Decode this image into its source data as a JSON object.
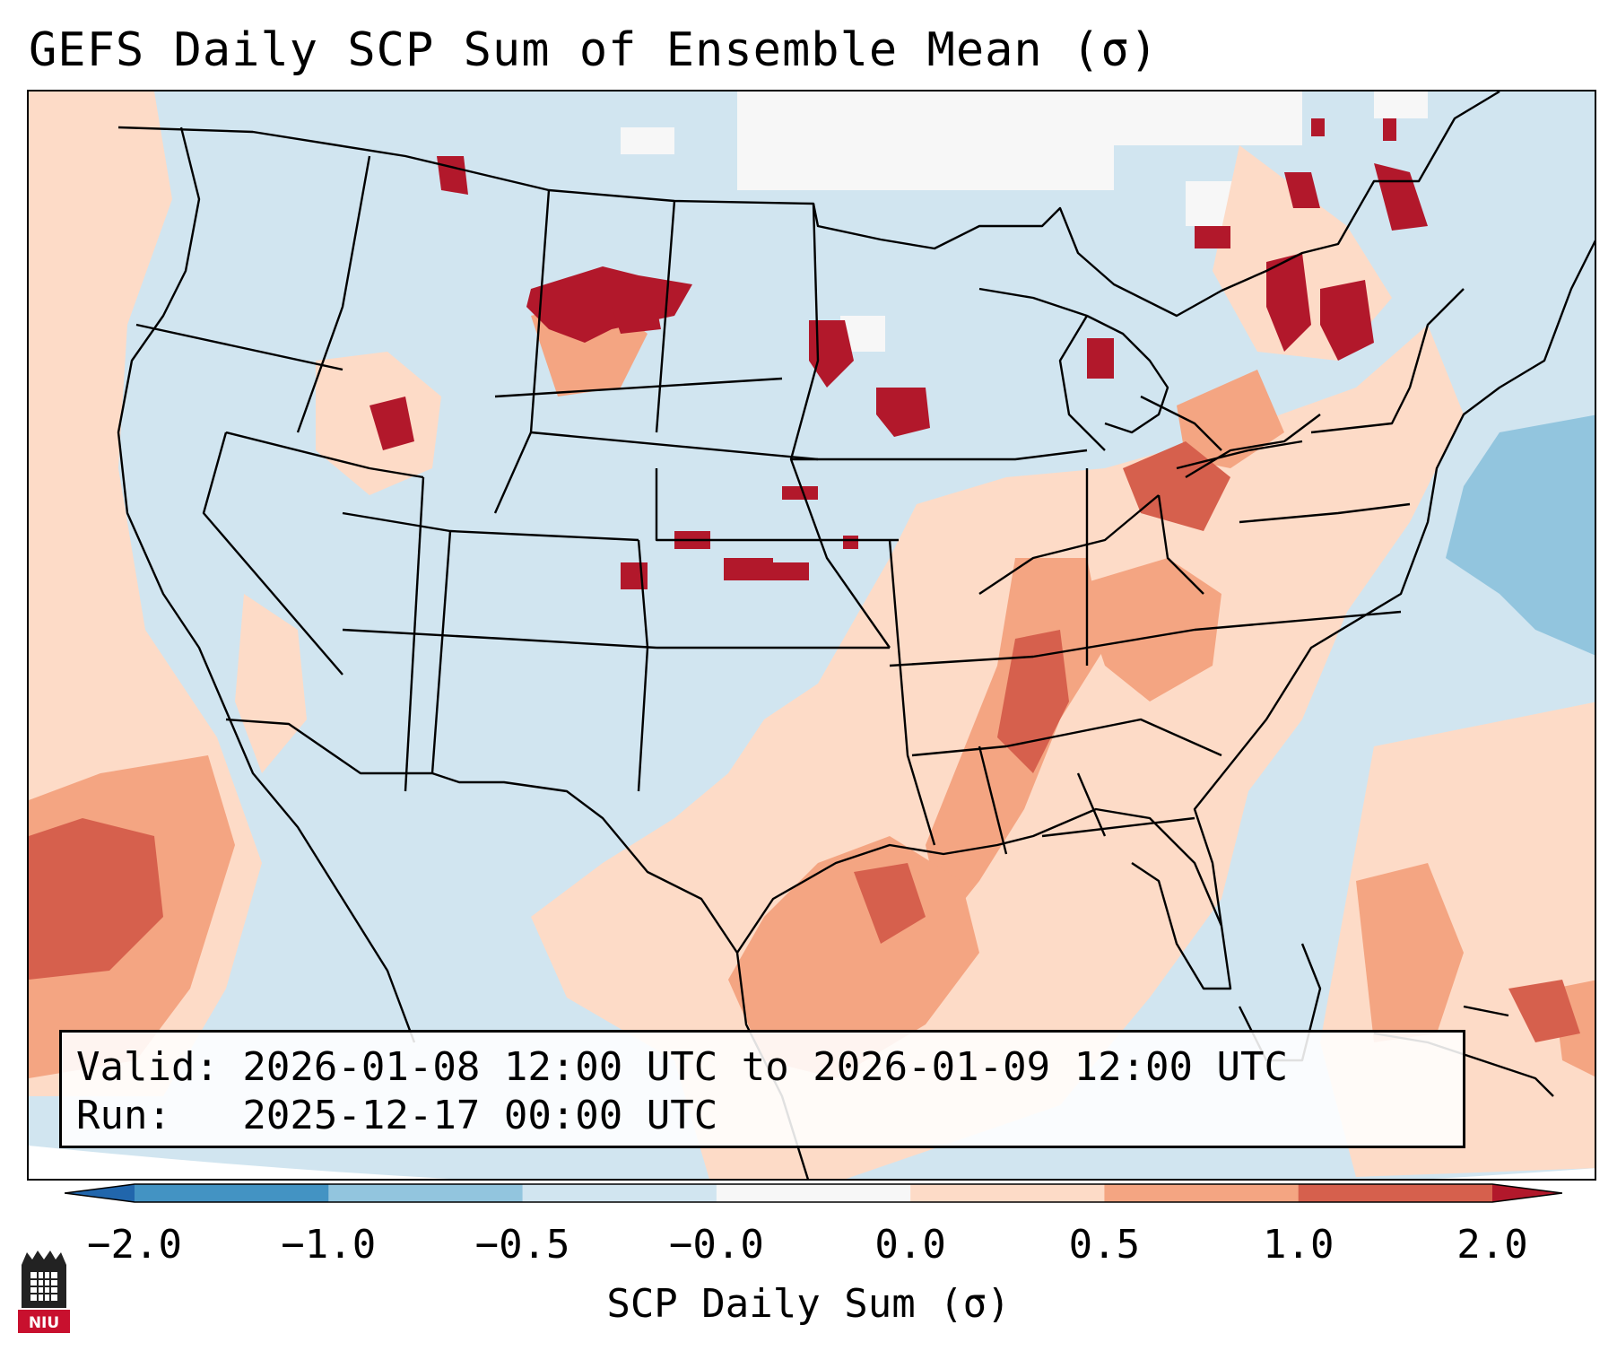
{
  "title": "GEFS Daily SCP Sum of Ensemble Mean (σ)",
  "info": {
    "valid_line": "Valid: 2026-01-08 12:00 UTC to 2026-01-09 12:00 UTC",
    "run_line": "Run:   2025-12-17 00:00 UTC"
  },
  "colorbar": {
    "label": "SCP Daily Sum (σ)",
    "ticks": [
      "−2.0",
      "−1.0",
      "−0.5",
      "−0.0",
      "0.0",
      "0.5",
      "1.0",
      "2.0"
    ],
    "bins": [
      {
        "range": "< -2.0",
        "color": "#2166ac"
      },
      {
        "range": "-2.0 to -1.0",
        "color": "#4393c3"
      },
      {
        "range": "-1.0 to -0.5",
        "color": "#92c5de"
      },
      {
        "range": "-0.5 to -0.0",
        "color": "#d1e5f0"
      },
      {
        "range": "-0.0 to 0.0",
        "color": "#f7f7f7"
      },
      {
        "range": "0.0 to 0.5",
        "color": "#fddbc7"
      },
      {
        "range": "0.5 to 1.0",
        "color": "#f4a582"
      },
      {
        "range": "1.0 to 2.0",
        "color": "#d6604d"
      },
      {
        "range": "> 2.0",
        "color": "#b2182b"
      }
    ]
  },
  "field": {
    "background_level": "-0.5 to -0.0",
    "notable_regions": [
      {
        "area": "eastern Montana / North Dakota",
        "level": "> 2.0"
      },
      {
        "area": "Minnesota / Iowa",
        "level": "> 2.0"
      },
      {
        "area": "Kansas",
        "level": "> 2.0"
      },
      {
        "area": "northern New York / Quebec",
        "level": "> 2.0"
      },
      {
        "area": "Tennessee Valley / Gulf Coast",
        "level": "0.5 to 1.0"
      },
      {
        "area": "western Gulf of Mexico",
        "level": "0.5 to 1.0"
      },
      {
        "area": "eastern Pacific",
        "level": "1.0 to 2.0"
      },
      {
        "area": "western Atlantic",
        "level": "-1.0 to -0.5"
      }
    ]
  },
  "logo": {
    "text": "NIU",
    "name": "Northern Illinois University"
  }
}
